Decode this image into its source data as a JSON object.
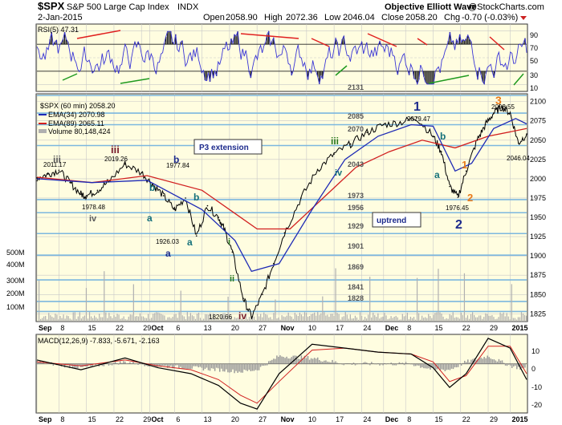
{
  "header": {
    "symbol": "$SPX",
    "name": "S&P 500 Large Cap Index",
    "exchange": "INDX",
    "brand": "Objective Elliott Wave",
    "copyright": "@StockCharts.com",
    "date": "2-Jan-2015",
    "open_label": "Open",
    "open": "2058.90",
    "high_label": "High",
    "high": "2072.36",
    "low_label": "Low",
    "low": "2046.04",
    "close_label": "Close",
    "close": "2058.20",
    "chg_label": "Chg",
    "chg": "-0.70 (-0.03%)"
  },
  "rsi": {
    "label": "RSI(5) 47.31",
    "levels": [
      "90",
      "70",
      "50",
      "30",
      "10"
    ]
  },
  "legend": {
    "price": "$SPX (60 min) 2058.20",
    "ema34": "EMA(34) 2070.98",
    "ema89": "EMA(89) 2065.11",
    "volume": "Volume 80,148,424"
  },
  "colors": {
    "panel_bg": "#FFFDE0",
    "grid": "#C8C8C8",
    "hline": "#7BB7DF",
    "ema34": "#1E2AB5",
    "ema89": "#D11F1F",
    "rsi_line": "#3A36D6",
    "wave_blue": "#1C2A8C",
    "wave_teal": "#14707A",
    "wave_green": "#2A7A1E",
    "wave_orange": "#E87A1A",
    "wave_maroon": "#7A1E2C",
    "volume": "#B0B0B0"
  },
  "levels": [
    "2131",
    "2085",
    "2070",
    "2043",
    "1973",
    "1956",
    "1929",
    "1901",
    "1869",
    "1841",
    "1828"
  ],
  "boxes": {
    "p3": "P3 extension",
    "uptrend": "uptrend"
  },
  "volume_scale": [
    "500M",
    "400M",
    "300M",
    "200M",
    "100M"
  ],
  "annotations": {
    "a2011": "2011.17",
    "a2019": "2019.26",
    "a1978": "1978.48",
    "a1977": "1977.84",
    "a1926": "1926.03",
    "a1820": "1820.66",
    "a2079": "2079.47",
    "a2093": "2093.55",
    "a1976": "1976.45",
    "a2046": "2046.04"
  },
  "waves": {
    "iii1": "iii",
    "iv1": "iv",
    "iii2": "iii",
    "a1": "a",
    "b1": "b",
    "a2": "a",
    "b2": "b",
    "a3": "a",
    "i": "i",
    "ii": "ii",
    "iv2": "iv",
    "iii3": "iii",
    "iv3": "iv",
    "w1": "1",
    "a4": "a",
    "b3": "b",
    "o1": "1",
    "o2": "2",
    "w2": "2",
    "o3": "3"
  },
  "macd": {
    "label": "MACD(12,26,9) -7.833, -5.671, -2.163",
    "levels": [
      "10",
      "0",
      "-10",
      "-20"
    ]
  },
  "chart_data": {
    "type": "line",
    "title": "$SPX S&P 500 Large Cap Index INDX",
    "x_labels": [
      "Sep",
      "8",
      "15",
      "22",
      "29",
      "Oct",
      "6",
      "13",
      "20",
      "27",
      "Nov",
      "10",
      "17",
      "24",
      "Dec",
      "8",
      "15",
      "22",
      "29",
      "2015"
    ],
    "y_ticks": [
      "2100",
      "2075",
      "2050",
      "2025",
      "2000",
      "1975",
      "1950",
      "1925",
      "1900",
      "1875",
      "1850",
      "1825"
    ],
    "ylim": [
      1815,
      2110
    ],
    "series": [
      {
        "name": "$SPX (60 min)",
        "x": [
          0,
          2,
          4,
          6,
          8,
          9,
          11,
          13,
          16,
          19,
          21,
          23,
          25,
          27,
          29,
          31,
          33,
          34,
          35.5,
          37.5,
          39,
          41,
          43,
          45,
          48,
          51,
          54,
          57,
          60,
          63,
          66,
          69,
          72,
          73.5,
          75,
          76.5,
          78,
          80,
          81.5,
          83,
          84.5,
          86,
          87.5,
          89
        ],
        "y": [
          2001,
          2006,
          2011,
          1995,
          1980,
          1978,
          1985,
          1996,
          2019,
          2008,
          1993,
          1978,
          1960,
          1975,
          1926,
          1965,
          1950,
          1935,
          1905,
          1845,
          1821,
          1850,
          1890,
          1930,
          1975,
          2012,
          2032,
          2045,
          2060,
          2070,
          2073,
          2079,
          2055,
          2035,
          1990,
          1976,
          2010,
          2050,
          2070,
          2085,
          2093,
          2085,
          2046,
          2058
        ]
      }
    ],
    "ema34": {
      "name": "EMA(34)",
      "x": [
        0,
        10,
        20,
        30,
        36,
        39,
        44,
        50,
        56,
        62,
        68,
        72,
        76,
        79,
        83,
        87,
        89
      ],
      "y": [
        2000,
        1995,
        1998,
        1960,
        1920,
        1880,
        1890,
        1960,
        2025,
        2055,
        2070,
        2068,
        2010,
        2020,
        2065,
        2078,
        2071
      ]
    },
    "ema89": {
      "name": "EMA(89)",
      "x": [
        0,
        10,
        20,
        30,
        36,
        40,
        46,
        52,
        58,
        64,
        70,
        76,
        82,
        89
      ],
      "y": [
        2002,
        1995,
        2004,
        1985,
        1955,
        1935,
        1935,
        1975,
        2015,
        2035,
        2050,
        2040,
        2055,
        2065
      ]
    },
    "rsi_ylim": [
      0,
      100
    ],
    "macd_ylim": [
      -25,
      15
    ]
  }
}
